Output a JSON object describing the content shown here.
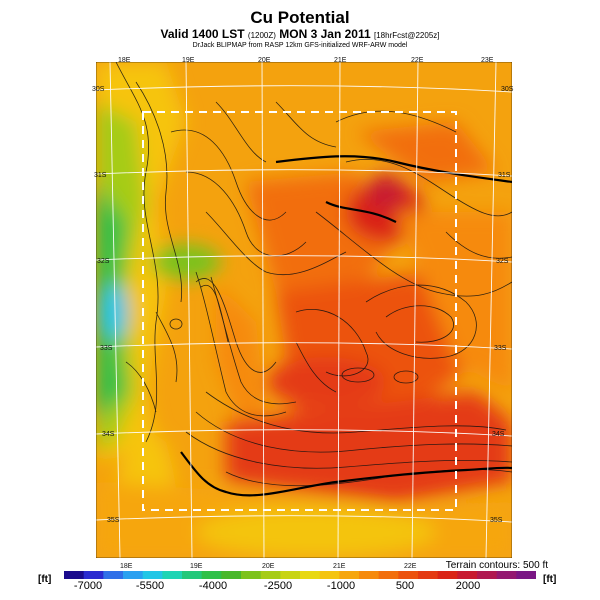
{
  "header": {
    "title": "Cu Potential",
    "subtitle_main": "Valid 1400 LST",
    "subtitle_code": "(1200Z)",
    "subtitle_date": "MON 3 Jan 2011",
    "subtitle_fcst": "[18hrFcst@2205z]",
    "credit": "DrJack BLIPMAP from RASP 12km GFS-initialized WRF-ARW model"
  },
  "map": {
    "lon_top": [
      "18E",
      "19E",
      "20E",
      "21E",
      "22E",
      "23E"
    ],
    "lon_bottom": [
      "18E",
      "19E",
      "20E",
      "21E",
      "22E"
    ],
    "lat_left": [
      "30S",
      "31S",
      "32S",
      "33S",
      "34S",
      "35S"
    ],
    "lat_right": [
      "30S",
      "31S",
      "32S",
      "33S",
      "34S",
      "35S"
    ],
    "terrain_note": "Terrain contours: 500 ft"
  },
  "colorbar": {
    "unit_left": "[ft]",
    "unit_right": "[ft]",
    "ticks": [
      "-7000",
      "-5500",
      "-4000",
      "-2500",
      "-1000",
      "500",
      "2000"
    ],
    "colors": [
      "#1a0a8c",
      "#2a2ad0",
      "#2f6fe8",
      "#2aa0f0",
      "#22c6e6",
      "#1ed4b4",
      "#22c87a",
      "#2ec048",
      "#48b82a",
      "#7cc21c",
      "#a6cc16",
      "#c8d414",
      "#e8d812",
      "#f4c410",
      "#f6a60e",
      "#f68a0c",
      "#f26e0c",
      "#ec520e",
      "#e43a12",
      "#da2416",
      "#c81a30",
      "#b01850",
      "#941870",
      "#7a1684"
    ]
  }
}
